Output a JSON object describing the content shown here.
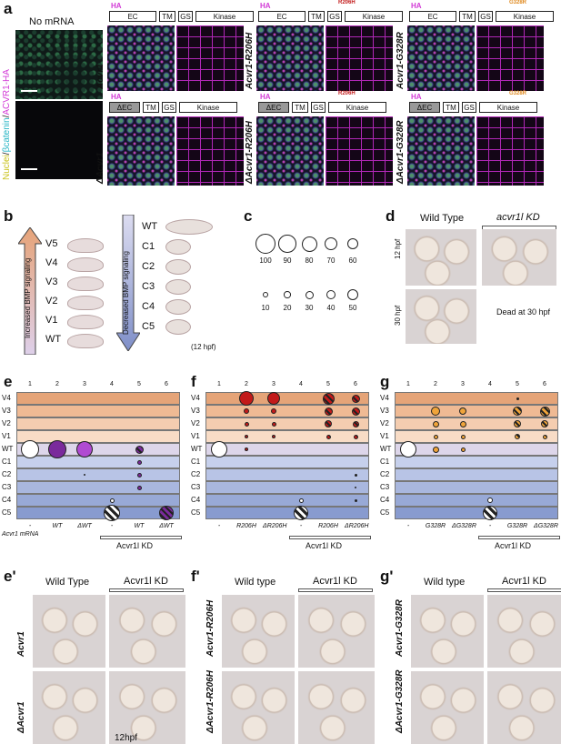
{
  "panel_labels": [
    "a",
    "b",
    "c",
    "d",
    "e",
    "f",
    "g",
    "e'",
    "f'",
    "g'"
  ],
  "panel_a": {
    "no_mrna": "No mRNA",
    "stain_label_parts": [
      "Nuclei",
      "/",
      "βcatenin",
      "/",
      "ACVR1-HA"
    ],
    "row_labels": [
      "Acvr1",
      "ΔAcvr1",
      "Acvr1-R206H",
      "ΔAcvr1-R206H",
      "Acvr1-G328R",
      "ΔAcvr1-G328R"
    ],
    "domains": [
      "EC",
      "TM",
      "GS",
      "Kinase"
    ],
    "dec_domain": "ΔEC",
    "ha": "HA",
    "mutations": [
      "R206H",
      "G328R"
    ]
  },
  "panel_b": {
    "up_label": "Increased BMP signaling",
    "down_label": "Decreased BMP signaling",
    "left_classes": [
      "V5",
      "V4",
      "V3",
      "V2",
      "V1",
      "WT"
    ],
    "right_classes": [
      "WT",
      "C1",
      "C2",
      "C3",
      "C4",
      "C5"
    ],
    "note": "(12 hpf)"
  },
  "panel_c": {
    "row1": [
      "100",
      "90",
      "80",
      "70",
      "60"
    ],
    "row2": [
      "10",
      "20",
      "30",
      "40",
      "50"
    ]
  },
  "panel_d": {
    "wt": "Wild Type",
    "kd": "acvr1l KD",
    "t1": "12 hpf",
    "t2": "30 hpf",
    "dead": "Dead at 30 hpf"
  },
  "grid": {
    "classes": [
      "V4",
      "V3",
      "V2",
      "V1",
      "WT",
      "C1",
      "C2",
      "C3",
      "C4",
      "C5"
    ],
    "cols": [
      "1",
      "2",
      "3",
      "4",
      "5",
      "6"
    ],
    "mrna_label": "Acvr1 mRNA",
    "kd_label": "Acvr1l KD",
    "e_x": [
      "-",
      "WT",
      "ΔWT",
      "-",
      "WT",
      "ΔWT"
    ],
    "f_x": [
      "-",
      "R206H",
      "ΔR206H",
      "-",
      "R206H",
      "ΔR206H"
    ],
    "g_x": [
      "-",
      "G328R",
      "ΔG328R",
      "-",
      "G328R",
      "ΔG328R"
    ]
  },
  "bottom": {
    "e_wt": "Wild Type",
    "e_kd": "Acvr1l KD",
    "e_rows": [
      "Acvr1",
      "ΔAcvr1"
    ],
    "e_time": "12hpf",
    "f_wt": "Wild type",
    "f_kd": "Acvr1l KD",
    "f_rows": [
      "Acvr1-R206H",
      "ΔAcvr1-R206H"
    ],
    "g_wt": "Wild type",
    "g_kd": "Acvr1l KD",
    "g_rows": [
      "Acvr1-G328R",
      "ΔAcvr1-G328R"
    ]
  },
  "colors": {
    "orange": "#e8a074",
    "blue": "#a9b7dd",
    "purple": "#7a2a9c",
    "red": "#c21a1a",
    "amber": "#f0a43a",
    "magenta": "#d23ad6"
  }
}
